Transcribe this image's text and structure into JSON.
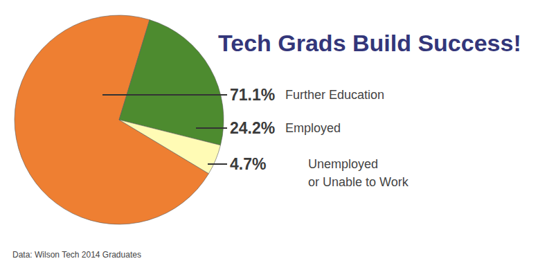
{
  "chart_data": {
    "type": "pie",
    "title": "Tech Grads Build Success!",
    "categories": [
      "Further Education",
      "Employed",
      "Unemployed\nor Unable to Work"
    ],
    "values": [
      71.1,
      24.2,
      4.7
    ],
    "value_labels": [
      "71.1%",
      "24.2%",
      "4.7%"
    ],
    "colors": [
      "#ee7f32",
      "#4d8b2f",
      "#fffbb5"
    ],
    "data_labels": true,
    "source": "Data: Wilson Tech 2014 Graduates"
  }
}
